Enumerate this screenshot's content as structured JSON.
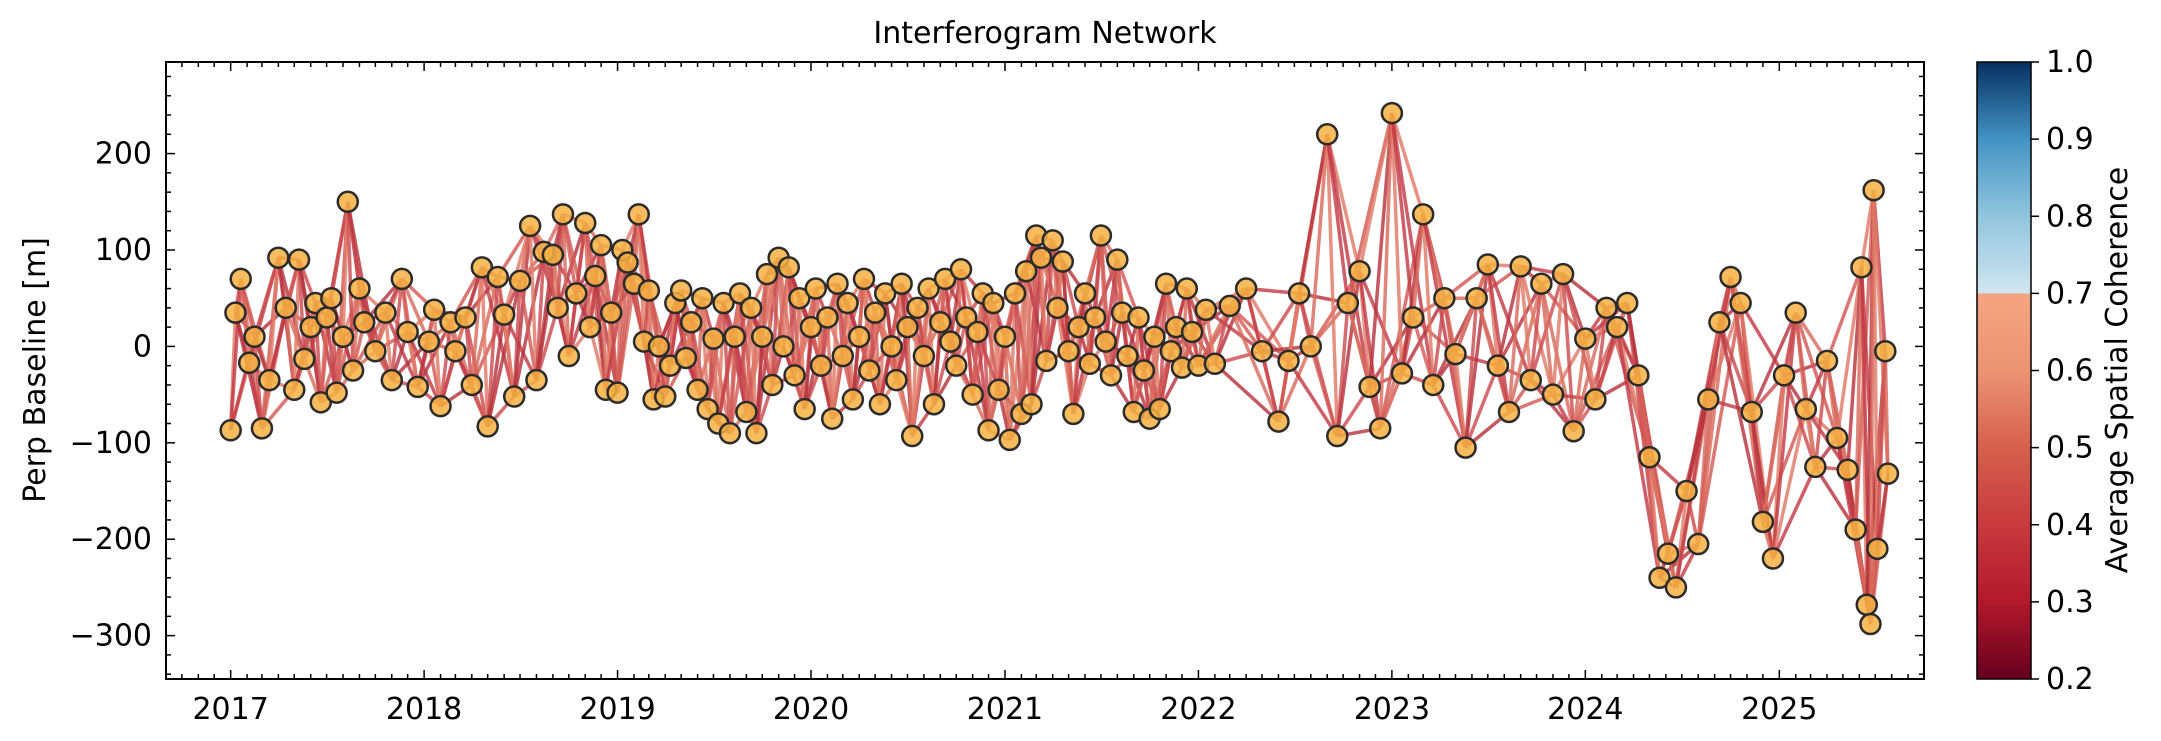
{
  "chart_data": {
    "type": "scatter",
    "title": "Interferogram Network",
    "ylabel": "Perp Baseline [m]",
    "xlim": [
      "2016-09-01",
      "2025-10-01"
    ],
    "ylim": [
      -345,
      295
    ],
    "x_ticks": [
      "2017",
      "2018",
      "2019",
      "2020",
      "2021",
      "2022",
      "2023",
      "2024",
      "2025"
    ],
    "y_ticks": [
      200,
      100,
      0,
      -100,
      -200,
      -300
    ],
    "y_tick_labels": [
      "200",
      "100",
      "0",
      "−100",
      "−200",
      "−300"
    ],
    "grid": false,
    "marker_face_color": "#f5b041",
    "marker_edge_color": "#2b2b2b",
    "colorbar": {
      "label": "Average Spatial Coherence",
      "range": [
        0.2,
        1.0
      ],
      "ticks": [
        "1.0",
        "0.9",
        "0.8",
        "0.7",
        "0.6",
        "0.5",
        "0.4",
        "0.3",
        "0.2"
      ],
      "colormap": "RdBu",
      "masked_above": 0.7
    },
    "acquisitions": [
      {
        "date": "2017-01-01",
        "bperp": -87
      },
      {
        "date": "2017-01-10",
        "bperp": 35
      },
      {
        "date": "2017-01-20",
        "bperp": 70
      },
      {
        "date": "2017-02-05",
        "bperp": -17
      },
      {
        "date": "2017-02-15",
        "bperp": 10
      },
      {
        "date": "2017-03-01",
        "bperp": -85
      },
      {
        "date": "2017-03-15",
        "bperp": -35
      },
      {
        "date": "2017-04-01",
        "bperp": 92
      },
      {
        "date": "2017-04-15",
        "bperp": 40
      },
      {
        "date": "2017-05-01",
        "bperp": -45
      },
      {
        "date": "2017-05-10",
        "bperp": 90
      },
      {
        "date": "2017-05-20",
        "bperp": -13
      },
      {
        "date": "2017-06-01",
        "bperp": 20
      },
      {
        "date": "2017-06-10",
        "bperp": 45
      },
      {
        "date": "2017-06-20",
        "bperp": -58
      },
      {
        "date": "2017-07-01",
        "bperp": 30
      },
      {
        "date": "2017-07-10",
        "bperp": 50
      },
      {
        "date": "2017-07-20",
        "bperp": -48
      },
      {
        "date": "2017-08-01",
        "bperp": 10
      },
      {
        "date": "2017-08-10",
        "bperp": 150
      },
      {
        "date": "2017-08-20",
        "bperp": -25
      },
      {
        "date": "2017-09-01",
        "bperp": 60
      },
      {
        "date": "2017-09-10",
        "bperp": 25
      },
      {
        "date": "2017-10-01",
        "bperp": -5
      },
      {
        "date": "2017-10-20",
        "bperp": 35
      },
      {
        "date": "2017-11-01",
        "bperp": -35
      },
      {
        "date": "2017-11-20",
        "bperp": 70
      },
      {
        "date": "2017-12-01",
        "bperp": 15
      },
      {
        "date": "2017-12-20",
        "bperp": -42
      },
      {
        "date": "2018-01-10",
        "bperp": 5
      },
      {
        "date": "2018-01-20",
        "bperp": 38
      },
      {
        "date": "2018-02-01",
        "bperp": -62
      },
      {
        "date": "2018-02-20",
        "bperp": 25
      },
      {
        "date": "2018-03-01",
        "bperp": -5
      },
      {
        "date": "2018-03-20",
        "bperp": 30
      },
      {
        "date": "2018-04-01",
        "bperp": -40
      },
      {
        "date": "2018-04-20",
        "bperp": 82
      },
      {
        "date": "2018-05-01",
        "bperp": -83
      },
      {
        "date": "2018-05-20",
        "bperp": 72
      },
      {
        "date": "2018-06-01",
        "bperp": 33
      },
      {
        "date": "2018-06-20",
        "bperp": -52
      },
      {
        "date": "2018-07-01",
        "bperp": 68
      },
      {
        "date": "2018-07-20",
        "bperp": 125
      },
      {
        "date": "2018-08-01",
        "bperp": -35
      },
      {
        "date": "2018-08-15",
        "bperp": 98
      },
      {
        "date": "2018-09-01",
        "bperp": 95
      },
      {
        "date": "2018-09-10",
        "bperp": 40
      },
      {
        "date": "2018-09-20",
        "bperp": 137
      },
      {
        "date": "2018-10-01",
        "bperp": -10
      },
      {
        "date": "2018-10-15",
        "bperp": 55
      },
      {
        "date": "2018-11-01",
        "bperp": 128
      },
      {
        "date": "2018-11-10",
        "bperp": 20
      },
      {
        "date": "2018-11-20",
        "bperp": 73
      },
      {
        "date": "2018-12-01",
        "bperp": 105
      },
      {
        "date": "2018-12-10",
        "bperp": -45
      },
      {
        "date": "2018-12-20",
        "bperp": 35
      },
      {
        "date": "2019-01-01",
        "bperp": -48
      },
      {
        "date": "2019-01-10",
        "bperp": 100
      },
      {
        "date": "2019-01-20",
        "bperp": 87
      },
      {
        "date": "2019-02-01",
        "bperp": 65
      },
      {
        "date": "2019-02-10",
        "bperp": 137
      },
      {
        "date": "2019-02-20",
        "bperp": 5
      },
      {
        "date": "2019-03-01",
        "bperp": 58
      },
      {
        "date": "2019-03-10",
        "bperp": -55
      },
      {
        "date": "2019-03-20",
        "bperp": 0
      },
      {
        "date": "2019-04-01",
        "bperp": -52
      },
      {
        "date": "2019-04-10",
        "bperp": -20
      },
      {
        "date": "2019-04-20",
        "bperp": 45
      },
      {
        "date": "2019-05-01",
        "bperp": 58
      },
      {
        "date": "2019-05-10",
        "bperp": -12
      },
      {
        "date": "2019-05-20",
        "bperp": 25
      },
      {
        "date": "2019-06-01",
        "bperp": -45
      },
      {
        "date": "2019-06-10",
        "bperp": 50
      },
      {
        "date": "2019-06-20",
        "bperp": -65
      },
      {
        "date": "2019-07-01",
        "bperp": 8
      },
      {
        "date": "2019-07-10",
        "bperp": -80
      },
      {
        "date": "2019-07-20",
        "bperp": 45
      },
      {
        "date": "2019-08-01",
        "bperp": -90
      },
      {
        "date": "2019-08-10",
        "bperp": 10
      },
      {
        "date": "2019-08-20",
        "bperp": 55
      },
      {
        "date": "2019-09-01",
        "bperp": -68
      },
      {
        "date": "2019-09-10",
        "bperp": 40
      },
      {
        "date": "2019-09-20",
        "bperp": -90
      },
      {
        "date": "2019-10-01",
        "bperp": 10
      },
      {
        "date": "2019-10-10",
        "bperp": 75
      },
      {
        "date": "2019-10-20",
        "bperp": -40
      },
      {
        "date": "2019-11-01",
        "bperp": 92
      },
      {
        "date": "2019-11-10",
        "bperp": 0
      },
      {
        "date": "2019-11-20",
        "bperp": 82
      },
      {
        "date": "2019-12-01",
        "bperp": -30
      },
      {
        "date": "2019-12-10",
        "bperp": 50
      },
      {
        "date": "2019-12-20",
        "bperp": -65
      },
      {
        "date": "2020-01-01",
        "bperp": 20
      },
      {
        "date": "2020-01-10",
        "bperp": 60
      },
      {
        "date": "2020-01-20",
        "bperp": -20
      },
      {
        "date": "2020-02-01",
        "bperp": 30
      },
      {
        "date": "2020-02-10",
        "bperp": -75
      },
      {
        "date": "2020-02-20",
        "bperp": 65
      },
      {
        "date": "2020-03-01",
        "bperp": -10
      },
      {
        "date": "2020-03-10",
        "bperp": 45
      },
      {
        "date": "2020-03-20",
        "bperp": -55
      },
      {
        "date": "2020-04-01",
        "bperp": 10
      },
      {
        "date": "2020-04-10",
        "bperp": 70
      },
      {
        "date": "2020-04-20",
        "bperp": -25
      },
      {
        "date": "2020-05-01",
        "bperp": 35
      },
      {
        "date": "2020-05-10",
        "bperp": -60
      },
      {
        "date": "2020-05-20",
        "bperp": 55
      },
      {
        "date": "2020-06-01",
        "bperp": 0
      },
      {
        "date": "2020-06-10",
        "bperp": -35
      },
      {
        "date": "2020-06-20",
        "bperp": 65
      },
      {
        "date": "2020-07-01",
        "bperp": 20
      },
      {
        "date": "2020-07-10",
        "bperp": -93
      },
      {
        "date": "2020-07-20",
        "bperp": 40
      },
      {
        "date": "2020-08-01",
        "bperp": -10
      },
      {
        "date": "2020-08-10",
        "bperp": 60
      },
      {
        "date": "2020-08-20",
        "bperp": -60
      },
      {
        "date": "2020-09-01",
        "bperp": 25
      },
      {
        "date": "2020-09-10",
        "bperp": 70
      },
      {
        "date": "2020-09-20",
        "bperp": 5
      },
      {
        "date": "2020-10-01",
        "bperp": -20
      },
      {
        "date": "2020-10-10",
        "bperp": 80
      },
      {
        "date": "2020-10-20",
        "bperp": 30
      },
      {
        "date": "2020-11-01",
        "bperp": -50
      },
      {
        "date": "2020-11-10",
        "bperp": 15
      },
      {
        "date": "2020-11-20",
        "bperp": 55
      },
      {
        "date": "2020-12-01",
        "bperp": -87
      },
      {
        "date": "2020-12-10",
        "bperp": 45
      },
      {
        "date": "2020-12-20",
        "bperp": -45
      },
      {
        "date": "2021-01-01",
        "bperp": 10
      },
      {
        "date": "2021-01-10",
        "bperp": -97
      },
      {
        "date": "2021-01-20",
        "bperp": 55
      },
      {
        "date": "2021-02-01",
        "bperp": -70
      },
      {
        "date": "2021-02-10",
        "bperp": 78
      },
      {
        "date": "2021-02-20",
        "bperp": -60
      },
      {
        "date": "2021-03-01",
        "bperp": 115
      },
      {
        "date": "2021-03-10",
        "bperp": 92
      },
      {
        "date": "2021-03-20",
        "bperp": -15
      },
      {
        "date": "2021-04-01",
        "bperp": 110
      },
      {
        "date": "2021-04-10",
        "bperp": 40
      },
      {
        "date": "2021-04-20",
        "bperp": 88
      },
      {
        "date": "2021-05-01",
        "bperp": -5
      },
      {
        "date": "2021-05-10",
        "bperp": -70
      },
      {
        "date": "2021-05-20",
        "bperp": 20
      },
      {
        "date": "2021-06-01",
        "bperp": 55
      },
      {
        "date": "2021-06-10",
        "bperp": -18
      },
      {
        "date": "2021-06-20",
        "bperp": 30
      },
      {
        "date": "2021-07-01",
        "bperp": 115
      },
      {
        "date": "2021-07-10",
        "bperp": 5
      },
      {
        "date": "2021-07-20",
        "bperp": -30
      },
      {
        "date": "2021-08-01",
        "bperp": 90
      },
      {
        "date": "2021-08-10",
        "bperp": 35
      },
      {
        "date": "2021-08-20",
        "bperp": -10
      },
      {
        "date": "2021-09-01",
        "bperp": -68
      },
      {
        "date": "2021-09-10",
        "bperp": 30
      },
      {
        "date": "2021-09-20",
        "bperp": -25
      },
      {
        "date": "2021-10-01",
        "bperp": -75
      },
      {
        "date": "2021-10-10",
        "bperp": 10
      },
      {
        "date": "2021-10-20",
        "bperp": -65
      },
      {
        "date": "2021-11-01",
        "bperp": 65
      },
      {
        "date": "2021-11-10",
        "bperp": -5
      },
      {
        "date": "2021-11-20",
        "bperp": 20
      },
      {
        "date": "2021-12-01",
        "bperp": -22
      },
      {
        "date": "2021-12-10",
        "bperp": 60
      },
      {
        "date": "2021-12-20",
        "bperp": 15
      },
      {
        "date": "2022-01-01",
        "bperp": -20
      },
      {
        "date": "2022-01-15",
        "bperp": 38
      },
      {
        "date": "2022-02-01",
        "bperp": -18
      },
      {
        "date": "2022-03-01",
        "bperp": 42
      },
      {
        "date": "2022-04-01",
        "bperp": 60
      },
      {
        "date": "2022-05-01",
        "bperp": -5
      },
      {
        "date": "2022-06-01",
        "bperp": -78
      },
      {
        "date": "2022-06-20",
        "bperp": -15
      },
      {
        "date": "2022-07-10",
        "bperp": 55
      },
      {
        "date": "2022-08-01",
        "bperp": 0
      },
      {
        "date": "2022-09-01",
        "bperp": 220
      },
      {
        "date": "2022-09-20",
        "bperp": -93
      },
      {
        "date": "2022-10-10",
        "bperp": 45
      },
      {
        "date": "2022-11-01",
        "bperp": 78
      },
      {
        "date": "2022-11-20",
        "bperp": -42
      },
      {
        "date": "2022-12-10",
        "bperp": -85
      },
      {
        "date": "2023-01-01",
        "bperp": 242
      },
      {
        "date": "2023-01-20",
        "bperp": -28
      },
      {
        "date": "2023-02-10",
        "bperp": 30
      },
      {
        "date": "2023-03-01",
        "bperp": 137
      },
      {
        "date": "2023-03-20",
        "bperp": -40
      },
      {
        "date": "2023-04-10",
        "bperp": 50
      },
      {
        "date": "2023-05-01",
        "bperp": -8
      },
      {
        "date": "2023-05-20",
        "bperp": -105
      },
      {
        "date": "2023-06-10",
        "bperp": 50
      },
      {
        "date": "2023-07-01",
        "bperp": 85
      },
      {
        "date": "2023-07-20",
        "bperp": -20
      },
      {
        "date": "2023-08-10",
        "bperp": -68
      },
      {
        "date": "2023-09-01",
        "bperp": 83
      },
      {
        "date": "2023-09-20",
        "bperp": -35
      },
      {
        "date": "2023-10-10",
        "bperp": 65
      },
      {
        "date": "2023-11-01",
        "bperp": -50
      },
      {
        "date": "2023-11-20",
        "bperp": 75
      },
      {
        "date": "2023-12-10",
        "bperp": -88
      },
      {
        "date": "2024-01-01",
        "bperp": 8
      },
      {
        "date": "2024-01-20",
        "bperp": -55
      },
      {
        "date": "2024-02-10",
        "bperp": 40
      },
      {
        "date": "2024-03-01",
        "bperp": 20
      },
      {
        "date": "2024-03-20",
        "bperp": 45
      },
      {
        "date": "2024-04-10",
        "bperp": -30
      },
      {
        "date": "2024-05-01",
        "bperp": -115
      },
      {
        "date": "2024-05-20",
        "bperp": -240
      },
      {
        "date": "2024-06-05",
        "bperp": -215
      },
      {
        "date": "2024-06-20",
        "bperp": -250
      },
      {
        "date": "2024-07-10",
        "bperp": -150
      },
      {
        "date": "2024-08-01",
        "bperp": -205
      },
      {
        "date": "2024-08-20",
        "bperp": -55
      },
      {
        "date": "2024-09-10",
        "bperp": 25
      },
      {
        "date": "2024-10-01",
        "bperp": 72
      },
      {
        "date": "2024-10-20",
        "bperp": 45
      },
      {
        "date": "2024-11-10",
        "bperp": -68
      },
      {
        "date": "2024-12-01",
        "bperp": -182
      },
      {
        "date": "2024-12-20",
        "bperp": -220
      },
      {
        "date": "2025-01-10",
        "bperp": -30
      },
      {
        "date": "2025-02-01",
        "bperp": 35
      },
      {
        "date": "2025-02-20",
        "bperp": -65
      },
      {
        "date": "2025-03-10",
        "bperp": -125
      },
      {
        "date": "2025-04-01",
        "bperp": -15
      },
      {
        "date": "2025-04-20",
        "bperp": -95
      },
      {
        "date": "2025-05-10",
        "bperp": -128
      },
      {
        "date": "2025-05-25",
        "bperp": -190
      },
      {
        "date": "2025-06-05",
        "bperp": 82
      },
      {
        "date": "2025-06-15",
        "bperp": -268
      },
      {
        "date": "2025-06-22",
        "bperp": -288
      },
      {
        "date": "2025-06-28",
        "bperp": 162
      },
      {
        "date": "2025-07-05",
        "bperp": -210
      },
      {
        "date": "2025-07-20",
        "bperp": -5
      },
      {
        "date": "2025-07-25",
        "bperp": -132
      }
    ]
  }
}
